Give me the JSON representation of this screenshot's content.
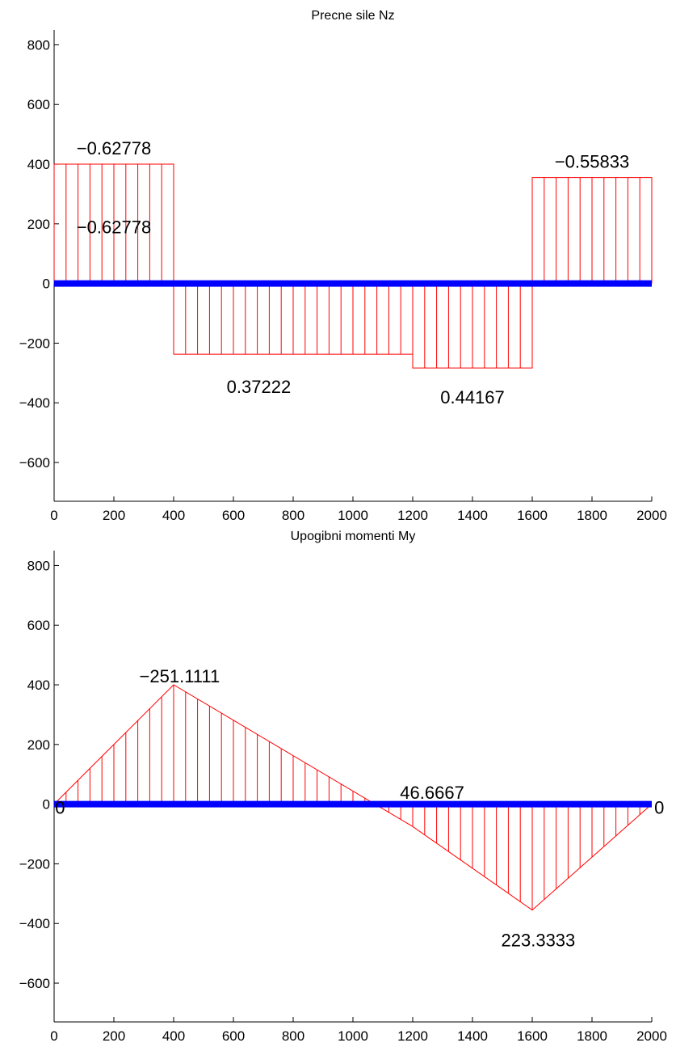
{
  "colors": {
    "diagram": "#ff0000",
    "beam": "#0000ff",
    "axis": "#000000",
    "background": "#ffffff"
  },
  "chart_data": [
    {
      "type": "area",
      "title": "Precne sile Nz",
      "xlim": [
        0,
        2000
      ],
      "ylim": [
        -730,
        850
      ],
      "xticks": [
        0,
        200,
        400,
        600,
        800,
        1000,
        1200,
        1400,
        1600,
        1800,
        2000
      ],
      "yticks": [
        -600,
        -400,
        -200,
        0,
        200,
        400,
        600,
        800
      ],
      "grid": false,
      "beam": {
        "x": [
          0,
          2000
        ],
        "y": 0
      },
      "outline": {
        "x": [
          0,
          0,
          400,
          400,
          1200,
          1200,
          1600,
          1600,
          2000,
          2000
        ],
        "y": [
          0,
          400,
          400,
          -237,
          -237,
          -283,
          -283,
          355,
          355,
          0
        ]
      },
      "hatch_step": 40,
      "labels": [
        {
          "text": "−0.62778",
          "x": 200,
          "y": 455
        },
        {
          "text": "−0.62778",
          "x": 200,
          "y": 190
        },
        {
          "text": "0.37222",
          "x": 685,
          "y": -345
        },
        {
          "text": "0.44167",
          "x": 1400,
          "y": -380
        },
        {
          "text": "−0.55833",
          "x": 1800,
          "y": 410
        }
      ]
    },
    {
      "type": "area",
      "title": "Upogibni momenti My",
      "xlim": [
        0,
        2000
      ],
      "ylim": [
        -730,
        850
      ],
      "xticks": [
        0,
        200,
        400,
        600,
        800,
        1000,
        1200,
        1400,
        1600,
        1800,
        2000
      ],
      "yticks": [
        -600,
        -400,
        -200,
        0,
        200,
        400,
        600,
        800
      ],
      "grid": false,
      "beam": {
        "x": [
          0,
          2000
        ],
        "y": 0
      },
      "outline": {
        "x": [
          0,
          400,
          1200,
          1600,
          2000
        ],
        "y": [
          0,
          400,
          -75,
          -355,
          0
        ]
      },
      "hatch_step": 40,
      "labels": [
        {
          "text": "0",
          "x": 20,
          "y": -10
        },
        {
          "text": "−251.1111",
          "x": 420,
          "y": 430
        },
        {
          "text": "46.6667",
          "x": 1265,
          "y": 40
        },
        {
          "text": "223.3333",
          "x": 1620,
          "y": -455
        },
        {
          "text": "0",
          "x": 2025,
          "y": -10
        }
      ]
    }
  ]
}
